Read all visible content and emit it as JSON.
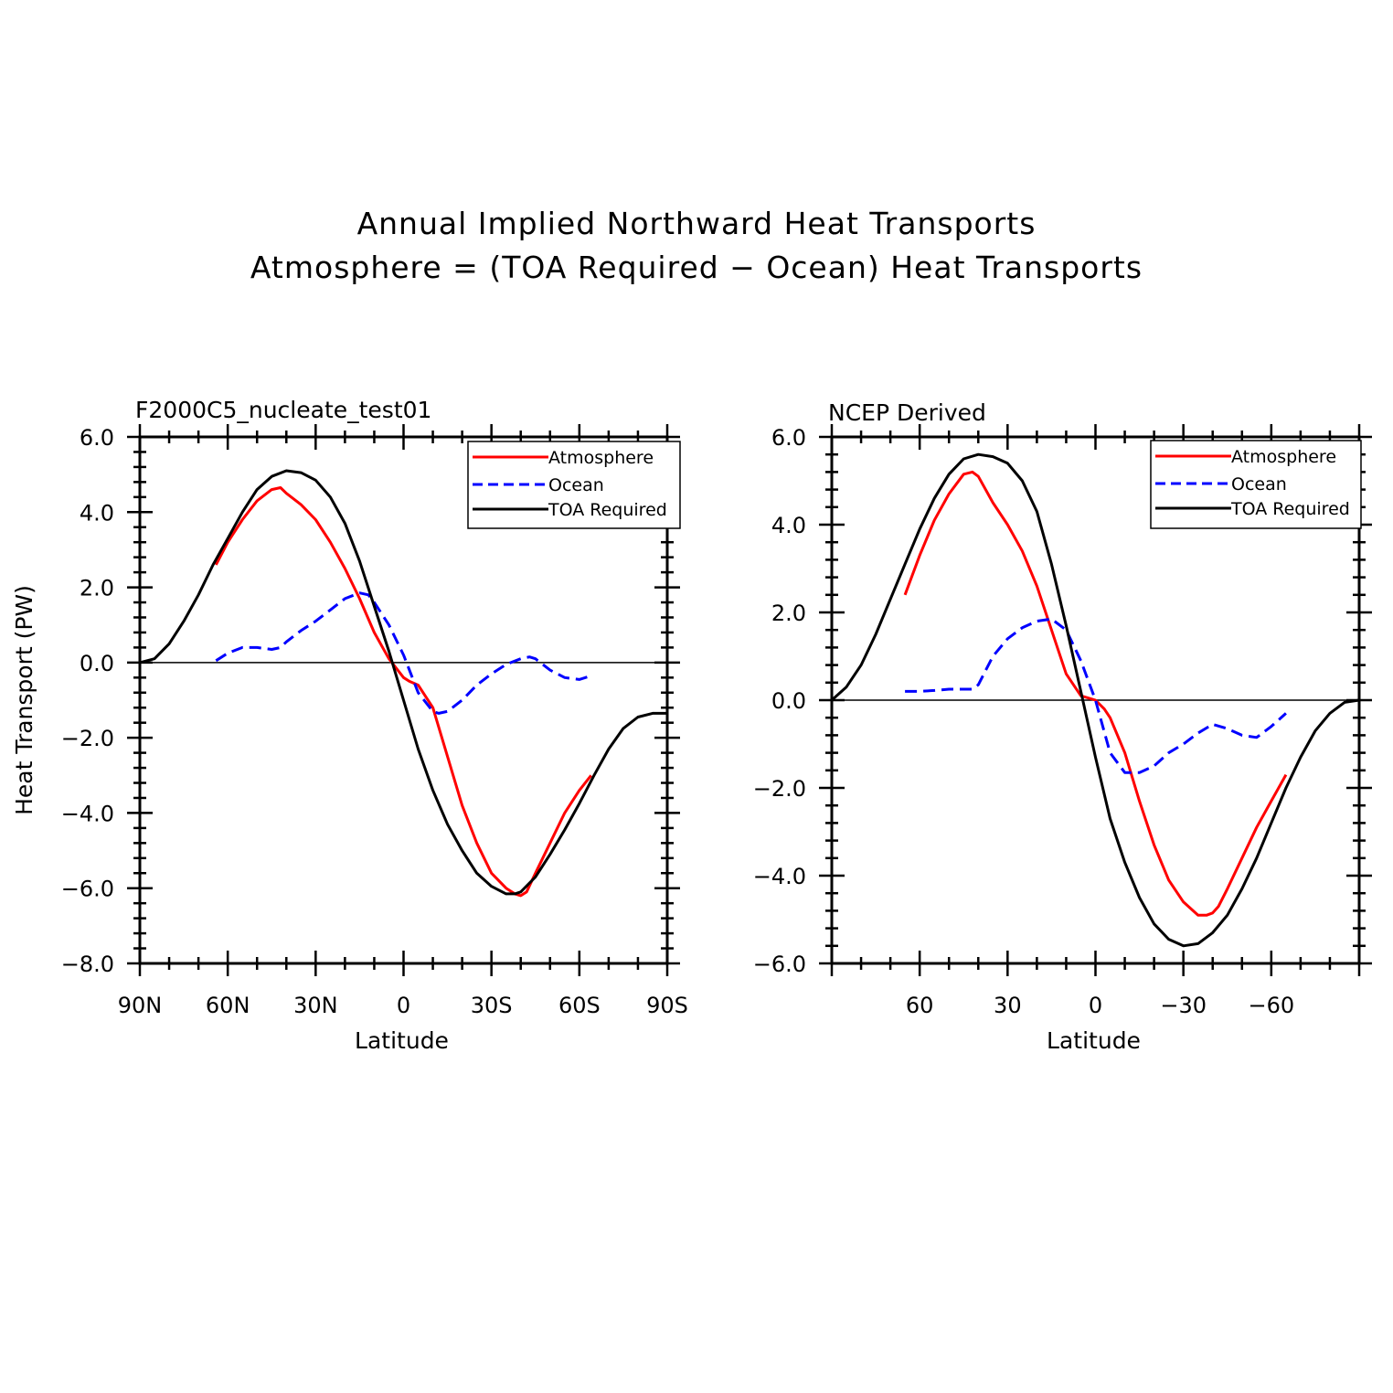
{
  "figure": {
    "title_line1": "Annual Implied Northward Heat Transports",
    "title_line2": "Atmosphere = (TOA Required − Ocean) Heat Transports"
  },
  "colors": {
    "atmosphere": "#ff0000",
    "ocean": "#0000ff",
    "toa": "#000000"
  },
  "chart_data": [
    {
      "type": "line",
      "title": "F2000C5_nucleate_test01",
      "xlabel": "Latitude",
      "ylabel": "Heat Transport (PW)",
      "xlim": [
        90,
        -90
      ],
      "ylim": [
        -8,
        6
      ],
      "xticks": [
        90,
        60,
        30,
        0,
        -30,
        -60,
        -90
      ],
      "xticklabels": [
        "90N",
        "60N",
        "30N",
        "0",
        "30S",
        "60S",
        "90S"
      ],
      "yticks": [
        6,
        4,
        2,
        0,
        -2,
        -4,
        -6,
        -8
      ],
      "yticklabels": [
        "6.0",
        "4.0",
        "2.0",
        "0.0",
        "−2.0",
        "−4.0",
        "−6.0",
        "−8.0"
      ],
      "legend": "top-right",
      "series": [
        {
          "name": "Atmosphere",
          "style": "solid",
          "color": "#ff0000",
          "x": [
            64,
            60,
            55,
            50,
            45,
            42,
            40,
            35,
            30,
            25,
            20,
            15,
            10,
            5,
            0,
            -2,
            -5,
            -10,
            -15,
            -20,
            -25,
            -30,
            -35,
            -38,
            -40,
            -42,
            -45,
            -50,
            -55,
            -60,
            -64
          ],
          "y": [
            2.6,
            3.2,
            3.8,
            4.3,
            4.6,
            4.65,
            4.5,
            4.2,
            3.8,
            3.2,
            2.5,
            1.7,
            0.8,
            0.1,
            -0.4,
            -0.5,
            -0.6,
            -1.2,
            -2.5,
            -3.8,
            -4.8,
            -5.6,
            -6.0,
            -6.15,
            -6.2,
            -6.1,
            -5.6,
            -4.8,
            -4.0,
            -3.4,
            -3.0
          ]
        },
        {
          "name": "Ocean",
          "style": "dashed",
          "color": "#0000ff",
          "x": [
            64,
            60,
            55,
            50,
            45,
            42,
            40,
            35,
            30,
            25,
            20,
            15,
            12,
            10,
            5,
            0,
            -5,
            -10,
            -12,
            -15,
            -20,
            -25,
            -30,
            -35,
            -40,
            -43,
            -45,
            -50,
            -55,
            -60,
            -64
          ],
          "y": [
            0.05,
            0.25,
            0.4,
            0.4,
            0.35,
            0.4,
            0.55,
            0.85,
            1.1,
            1.4,
            1.7,
            1.85,
            1.8,
            1.6,
            1.0,
            0.2,
            -0.8,
            -1.3,
            -1.35,
            -1.3,
            -1.0,
            -0.6,
            -0.3,
            -0.05,
            0.1,
            0.15,
            0.1,
            -0.2,
            -0.4,
            -0.45,
            -0.35
          ]
        },
        {
          "name": "TOA Required",
          "style": "solid",
          "color": "#000000",
          "x": [
            90,
            85,
            80,
            75,
            70,
            65,
            60,
            55,
            50,
            45,
            40,
            35,
            30,
            25,
            20,
            15,
            10,
            5,
            0,
            -5,
            -10,
            -15,
            -20,
            -25,
            -30,
            -35,
            -38,
            -40,
            -45,
            -50,
            -55,
            -60,
            -65,
            -70,
            -75,
            -80,
            -85,
            -90
          ],
          "y": [
            0,
            0.1,
            0.5,
            1.1,
            1.8,
            2.6,
            3.3,
            4.0,
            4.6,
            4.95,
            5.1,
            5.05,
            4.85,
            4.4,
            3.7,
            2.7,
            1.5,
            0.3,
            -1.0,
            -2.3,
            -3.4,
            -4.3,
            -5.0,
            -5.6,
            -5.95,
            -6.15,
            -6.15,
            -6.1,
            -5.7,
            -5.1,
            -4.45,
            -3.75,
            -3.0,
            -2.3,
            -1.75,
            -1.45,
            -1.35,
            -1.35
          ]
        }
      ]
    },
    {
      "type": "line",
      "title": "NCEP Derived",
      "xlabel": "Latitude",
      "ylabel": "",
      "xlim": [
        90,
        -90
      ],
      "ylim": [
        -6,
        6
      ],
      "xticks": [
        60,
        30,
        0,
        -30,
        -60
      ],
      "xticklabels": [
        "60",
        "30",
        "0",
        "−30",
        "−60"
      ],
      "yticks": [
        6,
        4,
        2,
        0,
        -2,
        -4,
        -6
      ],
      "yticklabels": [
        "6.0",
        "4.0",
        "2.0",
        "0.0",
        "−2.0",
        "−4.0",
        "−6.0"
      ],
      "legend": "top-right",
      "series": [
        {
          "name": "Atmosphere",
          "style": "solid",
          "color": "#ff0000",
          "x": [
            65,
            60,
            55,
            50,
            45,
            42,
            40,
            35,
            30,
            25,
            20,
            15,
            10,
            5,
            0,
            -3,
            -5,
            -10,
            -15,
            -20,
            -25,
            -30,
            -35,
            -38,
            -40,
            -42,
            -45,
            -50,
            -55,
            -60,
            -65
          ],
          "y": [
            2.4,
            3.3,
            4.1,
            4.7,
            5.15,
            5.2,
            5.1,
            4.5,
            4.0,
            3.4,
            2.6,
            1.6,
            0.6,
            0.1,
            0.0,
            -0.2,
            -0.4,
            -1.2,
            -2.3,
            -3.3,
            -4.1,
            -4.6,
            -4.9,
            -4.9,
            -4.85,
            -4.7,
            -4.3,
            -3.6,
            -2.9,
            -2.3,
            -1.7
          ]
        },
        {
          "name": "Ocean",
          "style": "dashed",
          "color": "#0000ff",
          "x": [
            65,
            60,
            55,
            50,
            45,
            42,
            40,
            35,
            30,
            25,
            20,
            15,
            10,
            5,
            0,
            -5,
            -10,
            -15,
            -20,
            -25,
            -30,
            -35,
            -40,
            -45,
            -50,
            -55,
            -60,
            -65
          ],
          "y": [
            0.2,
            0.2,
            0.22,
            0.25,
            0.25,
            0.25,
            0.35,
            1.0,
            1.4,
            1.65,
            1.8,
            1.85,
            1.6,
            0.9,
            0.0,
            -1.2,
            -1.65,
            -1.65,
            -1.5,
            -1.2,
            -1.0,
            -0.75,
            -0.55,
            -0.65,
            -0.8,
            -0.85,
            -0.6,
            -0.3
          ]
        },
        {
          "name": "TOA Required",
          "style": "solid",
          "color": "#000000",
          "x": [
            90,
            85,
            80,
            75,
            70,
            65,
            60,
            55,
            50,
            45,
            40,
            35,
            30,
            25,
            20,
            15,
            10,
            5,
            0,
            -5,
            -10,
            -15,
            -20,
            -25,
            -30,
            -35,
            -40,
            -45,
            -50,
            -55,
            -60,
            -65,
            -70,
            -75,
            -80,
            -85,
            -90
          ],
          "y": [
            0,
            0.3,
            0.8,
            1.5,
            2.3,
            3.1,
            3.9,
            4.6,
            5.15,
            5.5,
            5.6,
            5.55,
            5.4,
            5.0,
            4.3,
            3.1,
            1.7,
            0.2,
            -1.3,
            -2.7,
            -3.7,
            -4.5,
            -5.1,
            -5.45,
            -5.6,
            -5.55,
            -5.3,
            -4.9,
            -4.3,
            -3.6,
            -2.8,
            -2.0,
            -1.3,
            -0.7,
            -0.3,
            -0.05,
            0
          ]
        }
      ]
    }
  ]
}
